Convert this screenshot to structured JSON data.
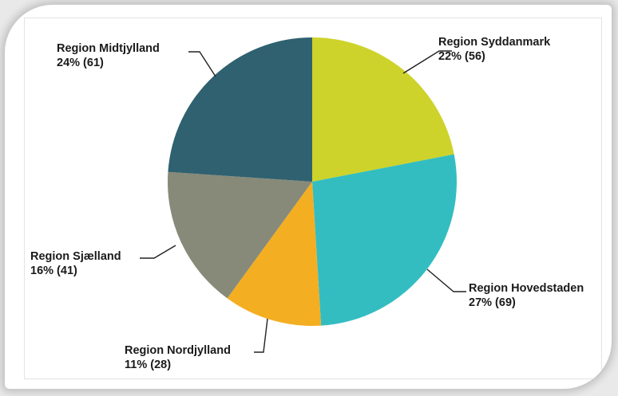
{
  "chart_data": {
    "type": "pie",
    "title": "",
    "slices": [
      {
        "name": "Region Syddanmark",
        "value": 56,
        "percent_label": "22% (56)",
        "color": "#cdd32b"
      },
      {
        "name": "Region Hovedstaden",
        "value": 69,
        "percent_label": "27% (69)",
        "color": "#33bdc1"
      },
      {
        "name": "Region Nordjylland",
        "value": 28,
        "percent_label": "11% (28)",
        "color": "#f4ae22"
      },
      {
        "name": "Region Sjælland",
        "value": 41,
        "percent_label": "16% (41)",
        "color": "#878a78"
      },
      {
        "name": "Region Midtjylland",
        "value": 61,
        "percent_label": "24% (61)",
        "color": "#2f6170"
      }
    ]
  }
}
